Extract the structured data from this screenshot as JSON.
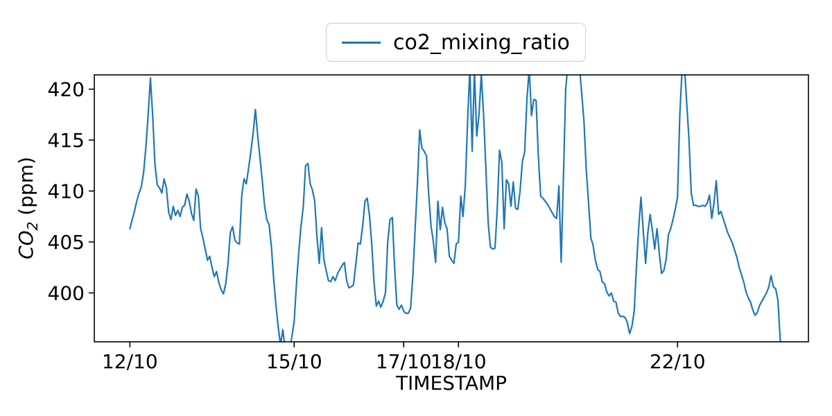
{
  "figure": {
    "background": "#ffffff"
  },
  "legend": {
    "label": "co2_mixing_ratio",
    "line_color": "#1f77b4"
  },
  "chart_data": {
    "type": "line",
    "title": "",
    "xlabel": "TIMESTAMP",
    "ylabel": "CO2 (ppm)",
    "ylabel_parts": {
      "gas": "CO",
      "sub": "2",
      "unit": " (ppm)"
    },
    "grid": false,
    "legend_position": "top-center-outside",
    "line_color": "#1f77b4",
    "ylim": [
      395.2,
      421.4
    ],
    "xlim_days": [
      -0.65,
      12.39
    ],
    "t_unit": "days since 12/10 00:00",
    "y_ticks": [
      400,
      405,
      410,
      415,
      420
    ],
    "x_ticks": [
      {
        "label": "12/10",
        "day": 0
      },
      {
        "label": "15/10",
        "day": 3
      },
      {
        "label": "17/10",
        "day": 5
      },
      {
        "label": "18/10",
        "day": 6
      },
      {
        "label": "22/10",
        "day": 10
      }
    ],
    "series": [
      {
        "name": "co2_mixing_ratio",
        "color": "#1f77b4",
        "points": [
          [
            0.0,
            406.3
          ],
          [
            0.042,
            407.2
          ],
          [
            0.083,
            408.0
          ],
          [
            0.125,
            409.0
          ],
          [
            0.167,
            409.8
          ],
          [
            0.208,
            410.4
          ],
          [
            0.25,
            411.8
          ],
          [
            0.292,
            414.3
          ],
          [
            0.333,
            417.4
          ],
          [
            0.375,
            421.1
          ],
          [
            0.417,
            417.3
          ],
          [
            0.458,
            412.6
          ],
          [
            0.5,
            410.6
          ],
          [
            0.542,
            410.3
          ],
          [
            0.583,
            409.8
          ],
          [
            0.625,
            411.2
          ],
          [
            0.667,
            410.3
          ],
          [
            0.708,
            407.9
          ],
          [
            0.75,
            407.2
          ],
          [
            0.792,
            408.5
          ],
          [
            0.833,
            407.6
          ],
          [
            0.875,
            408.1
          ],
          [
            0.917,
            407.5
          ],
          [
            0.958,
            408.4
          ],
          [
            1.0,
            408.6
          ],
          [
            1.042,
            409.7
          ],
          [
            1.083,
            409.0
          ],
          [
            1.125,
            407.8
          ],
          [
            1.167,
            407.1
          ],
          [
            1.208,
            410.2
          ],
          [
            1.25,
            409.5
          ],
          [
            1.292,
            406.3
          ],
          [
            1.333,
            405.4
          ],
          [
            1.375,
            404.3
          ],
          [
            1.417,
            403.2
          ],
          [
            1.458,
            403.6
          ],
          [
            1.5,
            402.5
          ],
          [
            1.542,
            401.6
          ],
          [
            1.583,
            402.1
          ],
          [
            1.625,
            401.0
          ],
          [
            1.667,
            400.3
          ],
          [
            1.708,
            399.9
          ],
          [
            1.75,
            400.9
          ],
          [
            1.792,
            402.9
          ],
          [
            1.833,
            405.9
          ],
          [
            1.875,
            406.5
          ],
          [
            1.917,
            405.2
          ],
          [
            1.958,
            404.9
          ],
          [
            2.0,
            404.8
          ],
          [
            2.042,
            409.5
          ],
          [
            2.083,
            411.2
          ],
          [
            2.125,
            410.7
          ],
          [
            2.167,
            412.2
          ],
          [
            2.208,
            413.8
          ],
          [
            2.25,
            415.7
          ],
          [
            2.292,
            418.0
          ],
          [
            2.333,
            415.5
          ],
          [
            2.375,
            413.3
          ],
          [
            2.417,
            411.0
          ],
          [
            2.458,
            408.6
          ],
          [
            2.5,
            407.2
          ],
          [
            2.542,
            406.7
          ],
          [
            2.583,
            404.6
          ],
          [
            2.625,
            401.4
          ],
          [
            2.667,
            398.8
          ],
          [
            2.708,
            396.7
          ],
          [
            2.75,
            394.9
          ],
          [
            2.792,
            396.4
          ],
          [
            2.833,
            394.6
          ],
          [
            2.875,
            394.3
          ],
          [
            2.917,
            394.5
          ],
          [
            2.958,
            395.7
          ],
          [
            3.0,
            397.2
          ],
          [
            3.042,
            400.9
          ],
          [
            3.083,
            404.0
          ],
          [
            3.125,
            406.6
          ],
          [
            3.167,
            408.5
          ],
          [
            3.208,
            412.5
          ],
          [
            3.25,
            412.7
          ],
          [
            3.292,
            410.7
          ],
          [
            3.333,
            410.1
          ],
          [
            3.375,
            409.0
          ],
          [
            3.417,
            405.5
          ],
          [
            3.458,
            402.9
          ],
          [
            3.5,
            406.4
          ],
          [
            3.542,
            403.3
          ],
          [
            3.583,
            402.2
          ],
          [
            3.625,
            401.2
          ],
          [
            3.667,
            401.1
          ],
          [
            3.708,
            401.6
          ],
          [
            3.75,
            401.2
          ],
          [
            3.792,
            401.9
          ],
          [
            3.833,
            402.3
          ],
          [
            3.875,
            402.7
          ],
          [
            3.917,
            403.0
          ],
          [
            3.958,
            401.2
          ],
          [
            4.0,
            400.5
          ],
          [
            4.042,
            400.6
          ],
          [
            4.083,
            400.8
          ],
          [
            4.125,
            402.8
          ],
          [
            4.167,
            404.9
          ],
          [
            4.208,
            404.8
          ],
          [
            4.25,
            406.5
          ],
          [
            4.292,
            409.0
          ],
          [
            4.333,
            409.3
          ],
          [
            4.375,
            407.6
          ],
          [
            4.417,
            404.8
          ],
          [
            4.458,
            401.0
          ],
          [
            4.5,
            398.7
          ],
          [
            4.542,
            399.2
          ],
          [
            4.583,
            398.6
          ],
          [
            4.625,
            399.2
          ],
          [
            4.667,
            400.0
          ],
          [
            4.708,
            405.0
          ],
          [
            4.75,
            407.2
          ],
          [
            4.792,
            407.4
          ],
          [
            4.833,
            402.5
          ],
          [
            4.875,
            398.8
          ],
          [
            4.917,
            398.4
          ],
          [
            4.958,
            398.8
          ],
          [
            5.0,
            398.2
          ],
          [
            5.042,
            398.0
          ],
          [
            5.083,
            398.0
          ],
          [
            5.125,
            398.5
          ],
          [
            5.167,
            401.7
          ],
          [
            5.208,
            406.2
          ],
          [
            5.25,
            410.7
          ],
          [
            5.292,
            416.0
          ],
          [
            5.333,
            414.2
          ],
          [
            5.375,
            413.9
          ],
          [
            5.417,
            413.4
          ],
          [
            5.458,
            409.5
          ],
          [
            5.5,
            406.5
          ],
          [
            5.542,
            405.0
          ],
          [
            5.583,
            403.0
          ],
          [
            5.625,
            409.0
          ],
          [
            5.667,
            406.2
          ],
          [
            5.708,
            408.4
          ],
          [
            5.75,
            406.9
          ],
          [
            5.792,
            406.3
          ],
          [
            5.833,
            403.6
          ],
          [
            5.875,
            403.2
          ],
          [
            5.917,
            402.9
          ],
          [
            5.958,
            404.8
          ],
          [
            6.0,
            405.0
          ],
          [
            6.042,
            409.5
          ],
          [
            6.083,
            407.5
          ],
          [
            6.125,
            410.5
          ],
          [
            6.167,
            417.0
          ],
          [
            6.208,
            422.0
          ],
          [
            6.25,
            413.9
          ],
          [
            6.292,
            421.8
          ],
          [
            6.333,
            415.4
          ],
          [
            6.375,
            417.5
          ],
          [
            6.417,
            421.5
          ],
          [
            6.458,
            417.6
          ],
          [
            6.5,
            412.2
          ],
          [
            6.542,
            406.9
          ],
          [
            6.583,
            404.5
          ],
          [
            6.625,
            404.3
          ],
          [
            6.667,
            404.4
          ],
          [
            6.708,
            408.3
          ],
          [
            6.75,
            414.0
          ],
          [
            6.792,
            412.8
          ],
          [
            6.833,
            406.3
          ],
          [
            6.875,
            411.1
          ],
          [
            6.917,
            410.7
          ],
          [
            6.958,
            408.5
          ],
          [
            7.0,
            410.9
          ],
          [
            7.042,
            408.3
          ],
          [
            7.083,
            408.2
          ],
          [
            7.125,
            410.0
          ],
          [
            7.167,
            412.9
          ],
          [
            7.208,
            413.8
          ],
          [
            7.25,
            419.0
          ],
          [
            7.292,
            422.0
          ],
          [
            7.333,
            417.4
          ],
          [
            7.375,
            419.0
          ],
          [
            7.417,
            418.9
          ],
          [
            7.458,
            413.5
          ],
          [
            7.5,
            409.5
          ],
          [
            7.542,
            409.3
          ],
          [
            7.583,
            409.0
          ],
          [
            7.625,
            408.7
          ],
          [
            7.667,
            408.3
          ],
          [
            7.708,
            407.9
          ],
          [
            7.75,
            407.5
          ],
          [
            7.792,
            407.3
          ],
          [
            7.833,
            410.5
          ],
          [
            7.875,
            403.0
          ],
          [
            7.917,
            411.5
          ],
          [
            7.958,
            420.0
          ],
          [
            8.0,
            422.5
          ],
          [
            8.042,
            423.5
          ],
          [
            8.083,
            424.0
          ],
          [
            8.125,
            423.8
          ],
          [
            8.167,
            423.0
          ],
          [
            8.208,
            422.3
          ],
          [
            8.25,
            419.6
          ],
          [
            8.292,
            416.8
          ],
          [
            8.333,
            412.2
          ],
          [
            8.375,
            408.8
          ],
          [
            8.417,
            405.4
          ],
          [
            8.458,
            404.7
          ],
          [
            8.5,
            403.2
          ],
          [
            8.542,
            402.3
          ],
          [
            8.583,
            402.1
          ],
          [
            8.625,
            401.1
          ],
          [
            8.667,
            400.9
          ],
          [
            8.708,
            400.1
          ],
          [
            8.75,
            399.7
          ],
          [
            8.792,
            400.0
          ],
          [
            8.833,
            399.2
          ],
          [
            8.875,
            399.1
          ],
          [
            8.917,
            398.0
          ],
          [
            8.958,
            397.7
          ],
          [
            9.0,
            397.7
          ],
          [
            9.042,
            397.6
          ],
          [
            9.083,
            397.1
          ],
          [
            9.125,
            396.0
          ],
          [
            9.167,
            396.7
          ],
          [
            9.208,
            398.2
          ],
          [
            9.25,
            402.6
          ],
          [
            9.292,
            406.5
          ],
          [
            9.333,
            409.4
          ],
          [
            9.375,
            406.0
          ],
          [
            9.417,
            402.9
          ],
          [
            9.458,
            405.9
          ],
          [
            9.5,
            407.7
          ],
          [
            9.542,
            406.1
          ],
          [
            9.583,
            404.3
          ],
          [
            9.625,
            406.3
          ],
          [
            9.667,
            403.9
          ],
          [
            9.708,
            401.9
          ],
          [
            9.75,
            402.2
          ],
          [
            9.792,
            403.3
          ],
          [
            9.833,
            405.7
          ],
          [
            9.875,
            406.3
          ],
          [
            9.917,
            407.2
          ],
          [
            9.958,
            408.2
          ],
          [
            10.0,
            409.4
          ],
          [
            10.042,
            417.5
          ],
          [
            10.083,
            422.0
          ],
          [
            10.125,
            422.3
          ],
          [
            10.167,
            418.7
          ],
          [
            10.208,
            415.2
          ],
          [
            10.25,
            409.8
          ],
          [
            10.292,
            408.6
          ],
          [
            10.333,
            408.6
          ],
          [
            10.375,
            408.5
          ],
          [
            10.417,
            408.5
          ],
          [
            10.458,
            408.6
          ],
          [
            10.5,
            408.5
          ],
          [
            10.542,
            408.8
          ],
          [
            10.583,
            409.6
          ],
          [
            10.625,
            407.3
          ],
          [
            10.667,
            408.9
          ],
          [
            10.708,
            411.0
          ],
          [
            10.75,
            407.7
          ],
          [
            10.792,
            408.0
          ],
          [
            10.833,
            407.3
          ],
          [
            10.875,
            406.6
          ],
          [
            10.917,
            405.9
          ],
          [
            10.958,
            405.4
          ],
          [
            11.0,
            404.9
          ],
          [
            11.042,
            404.2
          ],
          [
            11.083,
            403.5
          ],
          [
            11.125,
            402.5
          ],
          [
            11.167,
            401.8
          ],
          [
            11.208,
            401.1
          ],
          [
            11.25,
            400.1
          ],
          [
            11.292,
            399.5
          ],
          [
            11.333,
            399.1
          ],
          [
            11.375,
            398.3
          ],
          [
            11.417,
            397.8
          ],
          [
            11.458,
            398.1
          ],
          [
            11.5,
            398.8
          ],
          [
            11.542,
            399.2
          ],
          [
            11.583,
            399.6
          ],
          [
            11.625,
            400.0
          ],
          [
            11.667,
            400.6
          ],
          [
            11.708,
            401.7
          ],
          [
            11.75,
            400.6
          ],
          [
            11.792,
            400.4
          ],
          [
            11.833,
            399.3
          ],
          [
            11.875,
            395.4
          ],
          [
            11.917,
            393.5
          ]
        ]
      }
    ]
  }
}
